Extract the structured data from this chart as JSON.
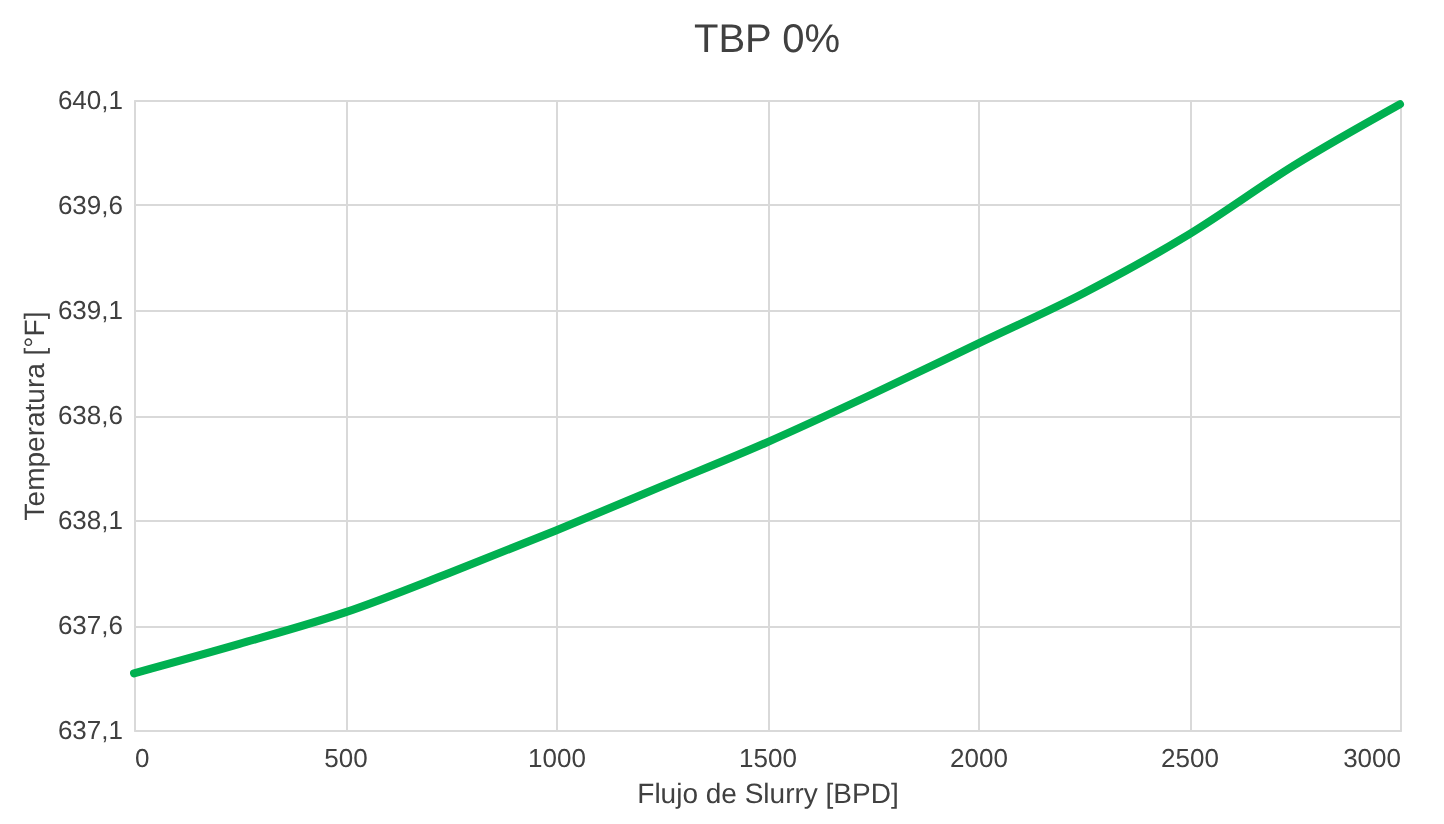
{
  "chart_data": {
    "type": "line",
    "title": "TBP 0%",
    "xlabel": "Flujo de Slurry [BPD]",
    "ylabel": "Temperatura [°F]",
    "x": [
      0,
      250,
      500,
      750,
      1000,
      1250,
      1500,
      1750,
      2000,
      2250,
      2500,
      2750,
      3000
    ],
    "series": [
      {
        "color": "#00b050",
        "values": [
          637.37,
          637.51,
          637.66,
          637.85,
          638.05,
          638.26,
          638.47,
          638.7,
          638.94,
          639.18,
          639.46,
          639.79,
          640.08
        ]
      }
    ],
    "xlim": [
      0,
      3000
    ],
    "xticks": [
      0,
      500,
      1000,
      1500,
      2000,
      2500,
      3000
    ],
    "ylim": [
      637.1,
      640.1
    ],
    "yticks": [
      {
        "value": 637.1,
        "label": "637,1"
      },
      {
        "value": 637.6,
        "label": "637,6"
      },
      {
        "value": 638.1,
        "label": "638,1"
      },
      {
        "value": 638.6,
        "label": "638,6"
      },
      {
        "value": 639.1,
        "label": "639,1"
      },
      {
        "value": 639.6,
        "label": "639,6"
      },
      {
        "value": 640.1,
        "label": "640,1"
      }
    ],
    "grid": true,
    "marker": "none",
    "line_style": "solid"
  }
}
